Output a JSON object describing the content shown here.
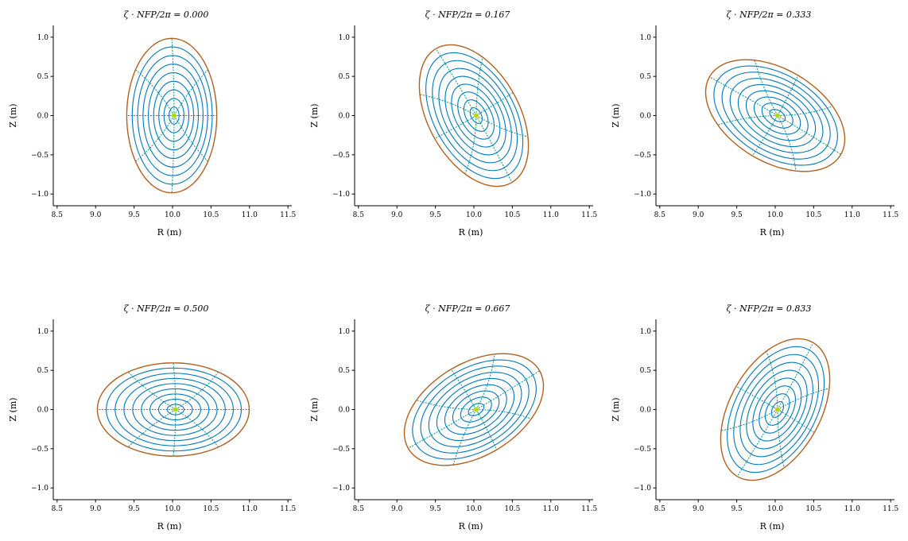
{
  "colors": {
    "flux_surface": "#0077bb",
    "boundary": "#b06020",
    "theta_line": "#009988",
    "axis": "#aadd00"
  },
  "chart_data": [
    {
      "type": "line",
      "title": "ζ · NFP/2π = 0.000",
      "phase": 0.0,
      "xlabel": "R (m)",
      "ylabel": "Z (m)",
      "xlim": [
        8.45,
        11.55
      ],
      "ylim": [
        -1.15,
        1.15
      ],
      "xticks": [
        "8.5",
        "9.0",
        "9.5",
        "10.0",
        "10.5",
        "11.0",
        "11.5"
      ],
      "yticks": [
        "−1.0",
        "−0.5",
        "0.0",
        "0.5",
        "1.0"
      ],
      "axis_point": [
        10.02,
        0.0
      ],
      "surfaces": 9,
      "grid": false
    },
    {
      "type": "line",
      "title": "ζ · NFP/2π = 0.167",
      "phase": 0.167,
      "xlabel": "R (m)",
      "ylabel": "Z (m)",
      "xlim": [
        8.45,
        11.55
      ],
      "ylim": [
        -1.15,
        1.15
      ],
      "xticks": [
        "8.5",
        "9.0",
        "9.5",
        "10.0",
        "10.5",
        "11.0",
        "11.5"
      ],
      "yticks": [
        "−1.0",
        "−0.5",
        "0.0",
        "0.5",
        "1.0"
      ],
      "axis_point": [
        10.03,
        0.0
      ],
      "surfaces": 9,
      "grid": false
    },
    {
      "type": "line",
      "title": "ζ · NFP/2π = 0.333",
      "phase": 0.333,
      "xlabel": "R (m)",
      "ylabel": "Z (m)",
      "xlim": [
        8.45,
        11.55
      ],
      "ylim": [
        -1.15,
        1.15
      ],
      "xticks": [
        "8.5",
        "9.0",
        "9.5",
        "10.0",
        "10.5",
        "11.0",
        "11.5"
      ],
      "yticks": [
        "−1.0",
        "−0.5",
        "0.0",
        "0.5",
        "1.0"
      ],
      "axis_point": [
        10.03,
        0.0
      ],
      "surfaces": 9,
      "grid": false
    },
    {
      "type": "line",
      "title": "ζ · NFP/2π = 0.500",
      "phase": 0.5,
      "xlabel": "R (m)",
      "ylabel": "Z (m)",
      "xlim": [
        8.45,
        11.55
      ],
      "ylim": [
        -1.15,
        1.15
      ],
      "xticks": [
        "8.5",
        "9.0",
        "9.5",
        "10.0",
        "10.5",
        "11.0",
        "11.5"
      ],
      "yticks": [
        "−1.0",
        "−0.5",
        "0.0",
        "0.5",
        "1.0"
      ],
      "axis_point": [
        10.04,
        0.0
      ],
      "surfaces": 9,
      "grid": false
    },
    {
      "type": "line",
      "title": "ζ · NFP/2π = 0.667",
      "phase": 0.667,
      "xlabel": "R (m)",
      "ylabel": "Z (m)",
      "xlim": [
        8.45,
        11.55
      ],
      "ylim": [
        -1.15,
        1.15
      ],
      "xticks": [
        "8.5",
        "9.0",
        "9.5",
        "10.0",
        "10.5",
        "11.0",
        "11.5"
      ],
      "yticks": [
        "−1.0",
        "−0.5",
        "0.0",
        "0.5",
        "1.0"
      ],
      "axis_point": [
        10.03,
        0.0
      ],
      "surfaces": 9,
      "grid": false
    },
    {
      "type": "line",
      "title": "ζ · NFP/2π = 0.833",
      "phase": 0.833,
      "xlabel": "R (m)",
      "ylabel": "Z (m)",
      "xlim": [
        8.45,
        11.55
      ],
      "ylim": [
        -1.15,
        1.15
      ],
      "xticks": [
        "8.5",
        "9.0",
        "9.5",
        "10.0",
        "10.5",
        "11.0",
        "11.5"
      ],
      "yticks": [
        "−1.0",
        "−0.5",
        "0.0",
        "0.5",
        "1.0"
      ],
      "axis_point": [
        10.03,
        0.0
      ],
      "surfaces": 9,
      "grid": false
    }
  ]
}
